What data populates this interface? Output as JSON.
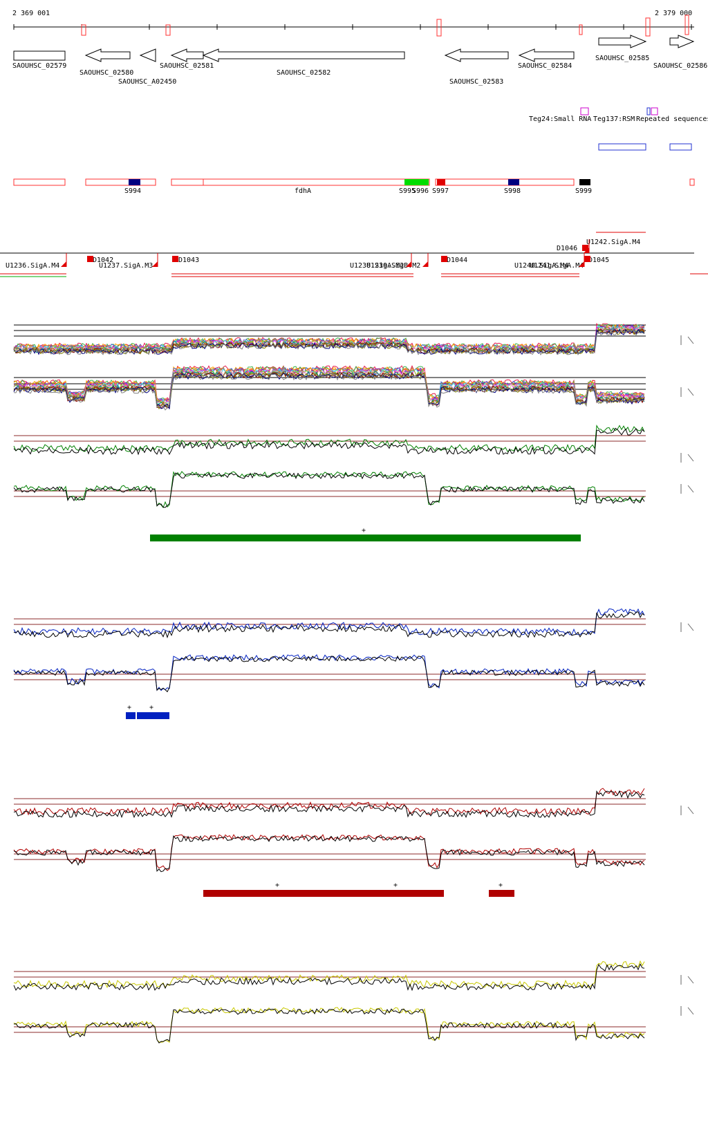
{
  "coords": {
    "start": "2 369 001",
    "end": "2 379 000"
  },
  "genes": [
    {
      "label": "SAOUHSC_02579",
      "dir": "+"
    },
    {
      "label": "SAOUHSC_02580",
      "dir": "-"
    },
    {
      "label": "SAOUHSC_A02450",
      "dir": "-"
    },
    {
      "label": "SAOUHSC_02581",
      "dir": "-"
    },
    {
      "label": "SAOUHSC_02582",
      "dir": "-"
    },
    {
      "label": "SAOUHSC_02583",
      "dir": "-"
    },
    {
      "label": "SAOUHSC_02584",
      "dir": "-"
    },
    {
      "label": "SAOUHSC_02585",
      "dir": "+"
    },
    {
      "label": "SAOUHSC_02586",
      "dir": "+"
    }
  ],
  "features_labels": {
    "teg24": "Teg24:Small RNA",
    "teg137": "Teg137:RSM",
    "repeated": "Repeated sequences"
  },
  "segments": [
    {
      "label": "S994",
      "color": "#000080"
    },
    {
      "label": "fdhA",
      "color": "#e00000"
    },
    {
      "label": "S995",
      "color": "#00dd00"
    },
    {
      "label": "S996",
      "color": "#00dd00"
    },
    {
      "label": "S997",
      "color": "#e00000"
    },
    {
      "label": "S998",
      "color": "#000080"
    },
    {
      "label": "S999",
      "color": "#000000"
    }
  ],
  "promoters": {
    "U1236": "U1236.SigA.M4",
    "U1237": "U1237.SigA.M3",
    "U1238": "U1238.SigA.M2",
    "U1239": "U1239.SigB.M2",
    "U1240": "U1240.SigA.M4",
    "U1241": "U1241.SigA.M4",
    "U1242": "U1242.SigA.M4"
  },
  "terminators": [
    "D1042",
    "D1043",
    "D1044",
    "D1045",
    "D1046"
  ],
  "bar_mark": "+",
  "colors": {
    "tracks": [
      "#008000",
      "#0020c0",
      "#b00000",
      "#c8c800"
    ],
    "refline": "#8b2a2a",
    "gene_box": "#ff3030",
    "small_rna": "#cc00cc",
    "repeat": "#2030d0"
  }
}
